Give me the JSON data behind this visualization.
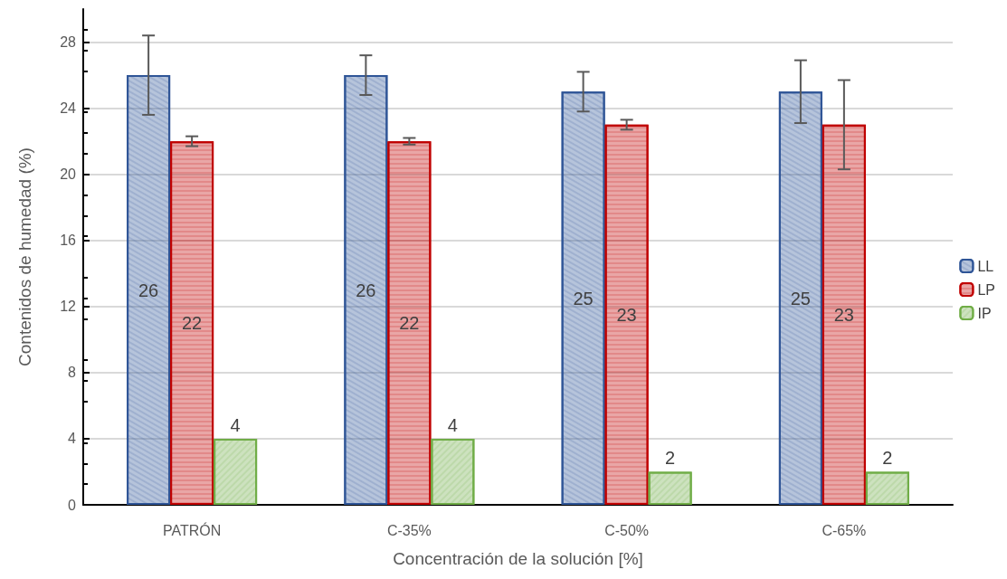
{
  "chart_data": {
    "type": "bar",
    "xlabel": "Concentración de la solución [%]",
    "ylabel": "Contenidos de humedad (%)",
    "categories": [
      "PATRÓN",
      "C-35%",
      "C-50%",
      "C-65%"
    ],
    "series": [
      {
        "name": "LL",
        "color": "#2f5597",
        "values": [
          26,
          26,
          25,
          25
        ],
        "errors": [
          2.4,
          1.2,
          1.2,
          1.9
        ]
      },
      {
        "name": "LP",
        "color": "#c00000",
        "values": [
          22,
          22,
          23,
          23
        ],
        "errors": [
          0.3,
          0.2,
          0.3,
          2.7
        ]
      },
      {
        "name": "IP",
        "color": "#70ad47",
        "values": [
          4,
          4,
          2,
          2
        ]
      }
    ],
    "ylim": [
      0,
      30
    ],
    "yticks": [
      0,
      4,
      8,
      12,
      16,
      20,
      24,
      28
    ],
    "grid": "y",
    "legend": "right",
    "data_labels": true
  }
}
